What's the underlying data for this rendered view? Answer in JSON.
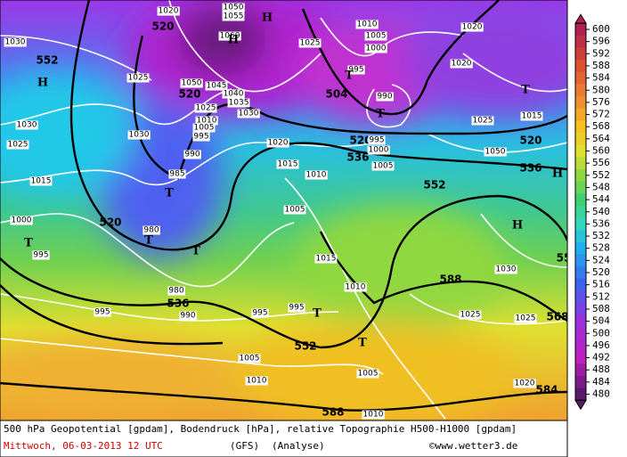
{
  "map": {
    "labels": [
      "1020",
      "1050",
      "1055",
      "H",
      "520",
      "1010",
      "1020",
      "1030",
      "552",
      "H",
      "1060",
      "H",
      "1005",
      "1000",
      "1025",
      "1020",
      "1025",
      "1050",
      "1045",
      "1040",
      "520",
      "995",
      "T",
      "504",
      "990",
      "T",
      "1025",
      "1035",
      "1030",
      "T",
      "1010",
      "1005",
      "995",
      "1030",
      "1025",
      "1015",
      "1030",
      "1025",
      "520",
      "1020",
      "995",
      "520",
      "990",
      "1000",
      "536",
      "1015",
      "1005",
      "1050",
      "536",
      "H",
      "1015",
      "985",
      "1010",
      "552",
      "T",
      "1005",
      "1000",
      "520",
      "H",
      "980",
      "T",
      "T",
      "T",
      "995",
      "1015",
      "55",
      "1030",
      "588",
      "980",
      "1010",
      "536",
      "995",
      "990",
      "995",
      "995",
      "T",
      "1025",
      "568",
      "1025",
      "552",
      "T",
      "1005",
      "1005",
      "1010",
      "1020",
      "584",
      "588",
      "1010"
    ]
  },
  "colorbar": {
    "ticks": [
      600,
      596,
      592,
      588,
      584,
      580,
      576,
      572,
      568,
      564,
      560,
      556,
      552,
      548,
      544,
      540,
      536,
      532,
      528,
      524,
      520,
      516,
      512,
      508,
      504,
      500,
      496,
      492,
      488,
      484,
      480
    ]
  },
  "footer": {
    "description": "500 hPa Geopotential [gpdam], Bodendruck [hPa], relative Topographie H500-H1000 [gpdam]",
    "date": "Mittwoch, 06-03-2013  12 UTC",
    "model": "(GFS)",
    "run": "(Analyse)",
    "credit": "©www.wetter3.de"
  }
}
